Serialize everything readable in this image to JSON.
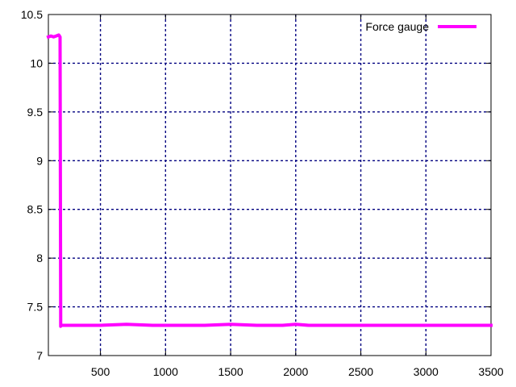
{
  "chart_data": {
    "type": "line",
    "xlim": [
      100,
      3500
    ],
    "ylim": [
      7,
      10.5
    ],
    "x_ticks": [
      500,
      1000,
      1500,
      2000,
      2500,
      3000,
      3500
    ],
    "y_ticks": [
      7,
      7.5,
      8,
      8.5,
      9,
      9.5,
      10,
      10.5
    ],
    "x_tick_labels": [
      "500",
      "1000",
      "1500",
      "2000",
      "2500",
      "3000",
      "3500"
    ],
    "y_tick_labels": [
      "7",
      "7.5",
      "8",
      "8.5",
      "9",
      "9.5",
      "10",
      "10.5"
    ],
    "grid": true,
    "legend_position": "top-right",
    "series": [
      {
        "name": "Force gauge",
        "color": "#ff00ff",
        "x": [
          100,
          120,
          140,
          160,
          180,
          190,
          195,
          200,
          300,
          500,
          700,
          900,
          1100,
          1300,
          1500,
          1700,
          1900,
          2000,
          2100,
          2300,
          2500,
          2700,
          2900,
          3100,
          3300,
          3500
        ],
        "y": [
          10.27,
          10.28,
          10.27,
          10.28,
          10.29,
          10.27,
          7.3,
          7.31,
          7.31,
          7.31,
          7.32,
          7.31,
          7.31,
          7.31,
          7.32,
          7.31,
          7.31,
          7.32,
          7.31,
          7.31,
          7.31,
          7.31,
          7.31,
          7.31,
          7.31,
          7.31
        ]
      }
    ]
  }
}
